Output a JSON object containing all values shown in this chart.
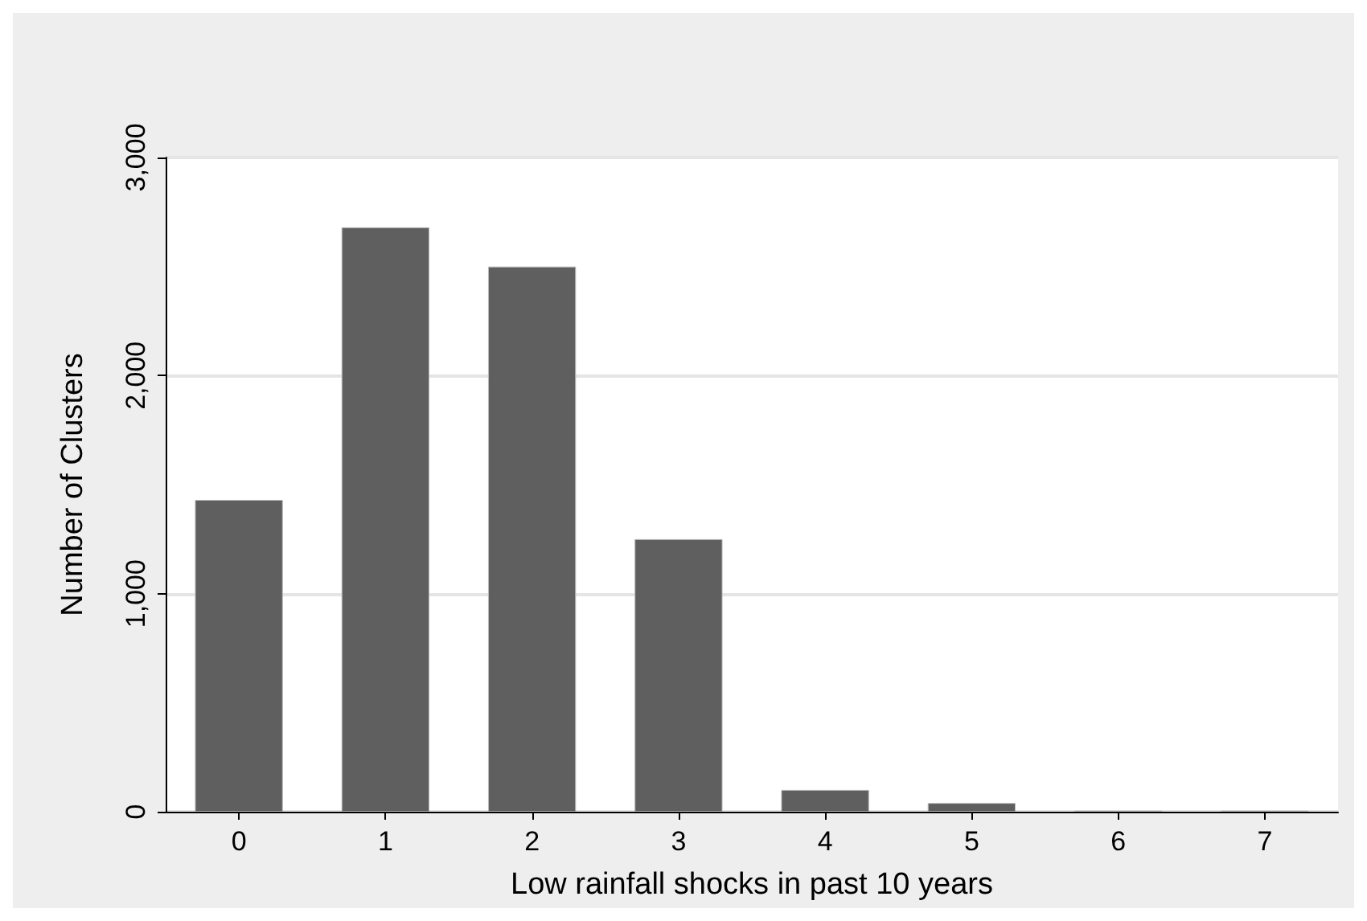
{
  "chart_data": {
    "type": "bar",
    "xlabel": "Low rainfall shocks in past 10 years",
    "ylabel": "Number of Clusters",
    "categories": [
      "0",
      "1",
      "2",
      "3",
      "4",
      "5",
      "6",
      "7"
    ],
    "values": [
      1430,
      2680,
      2500,
      1250,
      100,
      40,
      5,
      5
    ],
    "color": "#5f5f5f",
    "ylim": [
      0,
      3000
    ],
    "yticks": [
      0,
      {
        "value": 1000,
        "label": "1,000"
      },
      {
        "value": 2000,
        "label": "2,000"
      },
      {
        "value": 3000,
        "label": "3,000"
      }
    ],
    "grid": "y"
  }
}
